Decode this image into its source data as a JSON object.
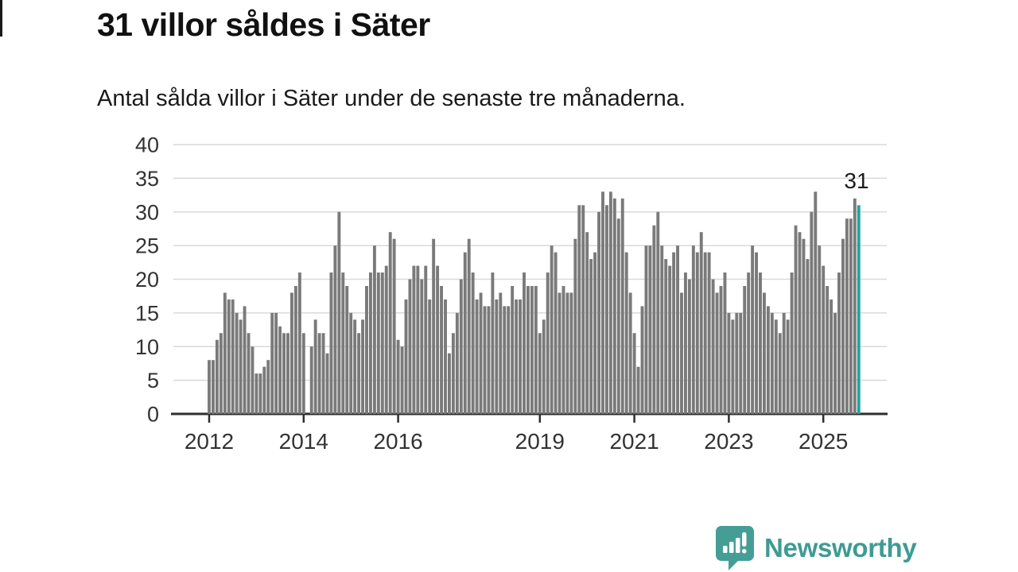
{
  "header": {
    "title": "31 villor såldes i Säter",
    "subtitle": "Antal sålda villor i Säter under de senaste tre månaderna."
  },
  "chart_data": {
    "type": "bar",
    "title": "31 villor såldes i Säter",
    "xlabel": "",
    "ylabel": "",
    "ylim": [
      0,
      40
    ],
    "grid": true,
    "y_ticks": [
      0,
      5,
      10,
      15,
      20,
      25,
      30,
      35,
      40
    ],
    "x_ticks": [
      {
        "label": "2012",
        "slot": 0
      },
      {
        "label": "2014",
        "slot": 24
      },
      {
        "label": "2016",
        "slot": 48
      },
      {
        "label": "2019",
        "slot": 84
      },
      {
        "label": "2021",
        "slot": 108
      },
      {
        "label": "2023",
        "slot": 132
      },
      {
        "label": "2025",
        "slot": 156
      }
    ],
    "start_period": "2012-01",
    "period_note": "monthly slots, one bar per month; null = missing month",
    "values": [
      8,
      8,
      11,
      12,
      18,
      17,
      17,
      15,
      14,
      16,
      12,
      10,
      6,
      6,
      7,
      8,
      15,
      15,
      13,
      12,
      12,
      18,
      19,
      21,
      12,
      null,
      10,
      14,
      12,
      12,
      9,
      21,
      25,
      30,
      21,
      19,
      15,
      14,
      12,
      14,
      19,
      21,
      25,
      21,
      21,
      22,
      27,
      26,
      11,
      10,
      17,
      20,
      22,
      22,
      20,
      22,
      17,
      26,
      22,
      19,
      17,
      9,
      12,
      15,
      20,
      24,
      26,
      21,
      17,
      18,
      16,
      16,
      21,
      17,
      18,
      16,
      16,
      19,
      17,
      17,
      21,
      19,
      19,
      19,
      12,
      14,
      21,
      25,
      24,
      18,
      19,
      18,
      18,
      26,
      31,
      31,
      27,
      23,
      24,
      30,
      33,
      31,
      33,
      32,
      29,
      32,
      24,
      18,
      12,
      7,
      16,
      25,
      25,
      28,
      30,
      25,
      23,
      22,
      24,
      25,
      18,
      21,
      20,
      25,
      24,
      27,
      24,
      24,
      20,
      18,
      19,
      21,
      15,
      14,
      15,
      15,
      19,
      21,
      25,
      24,
      21,
      18,
      16,
      15,
      14,
      12,
      15,
      14,
      21,
      28,
      27,
      26,
      23,
      30,
      33,
      25,
      22,
      19,
      17,
      15,
      21,
      26,
      29,
      29,
      32,
      31
    ],
    "highlight_last": true,
    "last_value_label": "31",
    "legend_position": "none",
    "colors": {
      "bar": "#7a7a7a",
      "highlight": "#1aa6a2",
      "grid": "#d9d9d9",
      "axis": "#2e2e2e",
      "text": "#333333"
    }
  },
  "footer": {
    "brand_name": "Newsworthy",
    "brand_color": "#3e9b93",
    "logo_icon": "bar-chart-speech-bubble-icon"
  }
}
